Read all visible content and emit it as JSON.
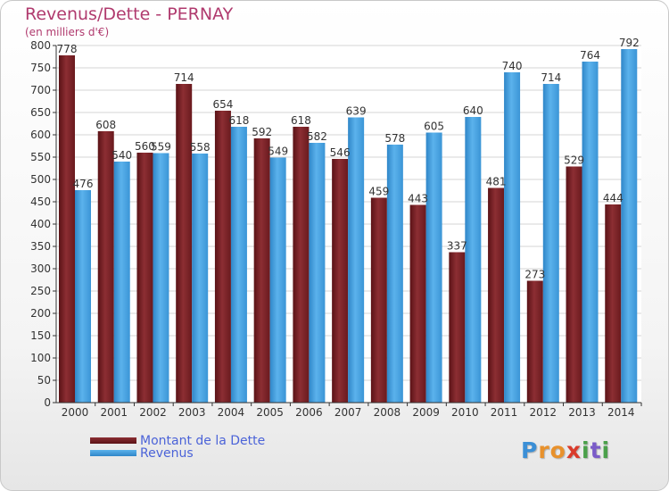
{
  "title": "Revenus/Dette - PERNAY",
  "subtitle": "(en milliers d'€)",
  "legend": {
    "debt_label": "Montant de la Dette",
    "revenue_label": "Revenus"
  },
  "logo": {
    "letters": [
      "P",
      "r",
      "o",
      "x",
      "i",
      "t",
      "i"
    ]
  },
  "colors": {
    "debt": "#7a2328",
    "revenue": "#4aa3e0",
    "title": "#b03a6e",
    "legend_text": "#4b63d8"
  },
  "chart_data": {
    "type": "bar",
    "title": "Revenus/Dette - PERNAY",
    "ylabel": "(en milliers d'€)",
    "categories": [
      "2000",
      "2001",
      "2002",
      "2003",
      "2004",
      "2005",
      "2006",
      "2007",
      "2008",
      "2009",
      "2010",
      "2011",
      "2012",
      "2013",
      "2014"
    ],
    "series": [
      {
        "name": "Montant de la Dette",
        "values": [
          778,
          608,
          560,
          714,
          654,
          592,
          618,
          546,
          459,
          443,
          337,
          481,
          273,
          529,
          444
        ]
      },
      {
        "name": "Revenus",
        "values": [
          476,
          540,
          559,
          558,
          618,
          549,
          582,
          639,
          578,
          605,
          640,
          740,
          714,
          764,
          792
        ]
      }
    ],
    "ylim": [
      0,
      800
    ],
    "yticks": [
      0,
      50,
      100,
      150,
      200,
      250,
      300,
      350,
      400,
      450,
      500,
      550,
      600,
      650,
      700,
      750,
      800
    ],
    "grid": true,
    "legend_position": "bottom-left"
  }
}
